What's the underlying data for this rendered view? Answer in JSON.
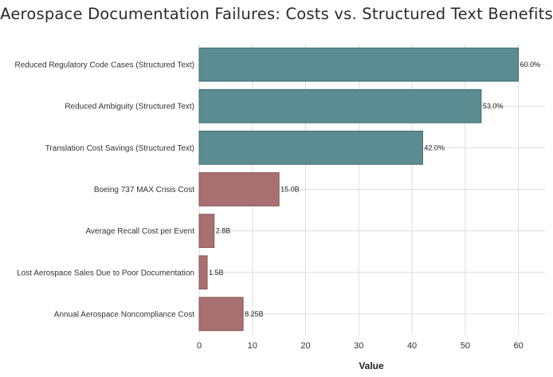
{
  "chart_data": {
    "type": "bar",
    "orientation": "horizontal",
    "title": "Aerospace Documentation Failures: Costs vs. Structured Text Benefits",
    "xlabel": "Value",
    "ylabel": "",
    "xlim": [
      0,
      65
    ],
    "xticks": [
      0,
      10,
      20,
      30,
      40,
      50,
      60
    ],
    "grid": true,
    "categories": [
      "Reduced Regulatory Code Cases (Structured Text)",
      "Reduced Ambiguity (Structured Text)",
      "Translation Cost Savings (Structured Text)",
      "Boeing 737 MAX Crisis Cost",
      "Average Recall Cost per Event",
      "Lost Aerospace Sales Due to Poor Documentation",
      "Annual Aerospace Noncompliance Cost"
    ],
    "values": [
      60,
      53,
      42,
      15,
      2.8,
      1.5,
      8.25
    ],
    "data_labels": [
      "60.0%",
      "53.0%",
      "42.0%",
      "15.0B",
      "2.8B",
      "1.5B",
      "8.25B"
    ],
    "colors": [
      "#5a8c91",
      "#5a8c91",
      "#5a8c91",
      "#a87070",
      "#a87070",
      "#a87070",
      "#a87070"
    ],
    "bar_stroke_colors": [
      "#3f6b70",
      "#3f6b70",
      "#3f6b70",
      "#8a5353",
      "#8a5353",
      "#8a5353",
      "#8a5353"
    ],
    "grid_color": "#dddddd"
  }
}
